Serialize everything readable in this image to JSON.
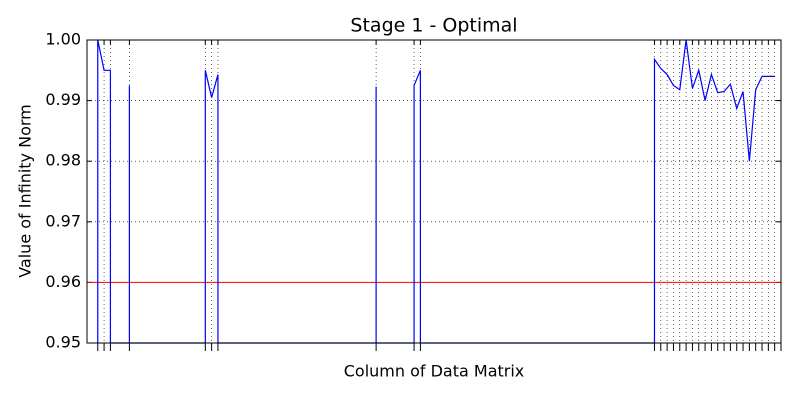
{
  "chart_data": {
    "type": "line",
    "title": "Stage 1 - Optimal",
    "x_label": "Column of Data Matrix",
    "y_label": "Value of Infinity Norm",
    "x": [
      0,
      0,
      1,
      2,
      2,
      5,
      5,
      5,
      17,
      17,
      18,
      19,
      19,
      44,
      44,
      44,
      50,
      50,
      51,
      51,
      88,
      88,
      89,
      90,
      91,
      92,
      93,
      94,
      95,
      96,
      97,
      98,
      99,
      100,
      101,
      102,
      103,
      104,
      105,
      106,
      107
    ],
    "series": [
      {
        "name": "Infinity norm",
        "color": "#0000ff",
        "values": [
          0.95,
          1.0,
          0.995,
          0.995,
          0.95,
          0.95,
          0.9925,
          0.95,
          0.95,
          0.995,
          0.9905,
          0.9943,
          0.95,
          0.95,
          0.9923,
          0.95,
          0.95,
          0.9925,
          0.995,
          0.95,
          0.95,
          0.9968,
          0.9953,
          0.9943,
          0.9925,
          0.9918,
          1.0,
          0.992,
          0.995,
          0.99,
          0.9943,
          0.9913,
          0.9915,
          0.9927,
          0.9887,
          0.9915,
          0.98,
          0.9918,
          0.994,
          0.994,
          0.994
        ]
      }
    ],
    "threshold": 0.96,
    "threshold_color": "#ff0000",
    "xlim": [
      -1.7,
      108
    ],
    "xticks": [
      0,
      1,
      2,
      5,
      17,
      18,
      19,
      44,
      50,
      51,
      88,
      89,
      90,
      91,
      92,
      93,
      94,
      95,
      96,
      97,
      98,
      99,
      100,
      101,
      102,
      103,
      104,
      105,
      106,
      107,
      108
    ],
    "ylim": [
      0.95,
      1.0
    ],
    "yticks": [
      0.95,
      0.96,
      0.97,
      0.98,
      0.99,
      {
        "value": 1.0,
        "label": "1.00"
      }
    ],
    "grid": true
  }
}
